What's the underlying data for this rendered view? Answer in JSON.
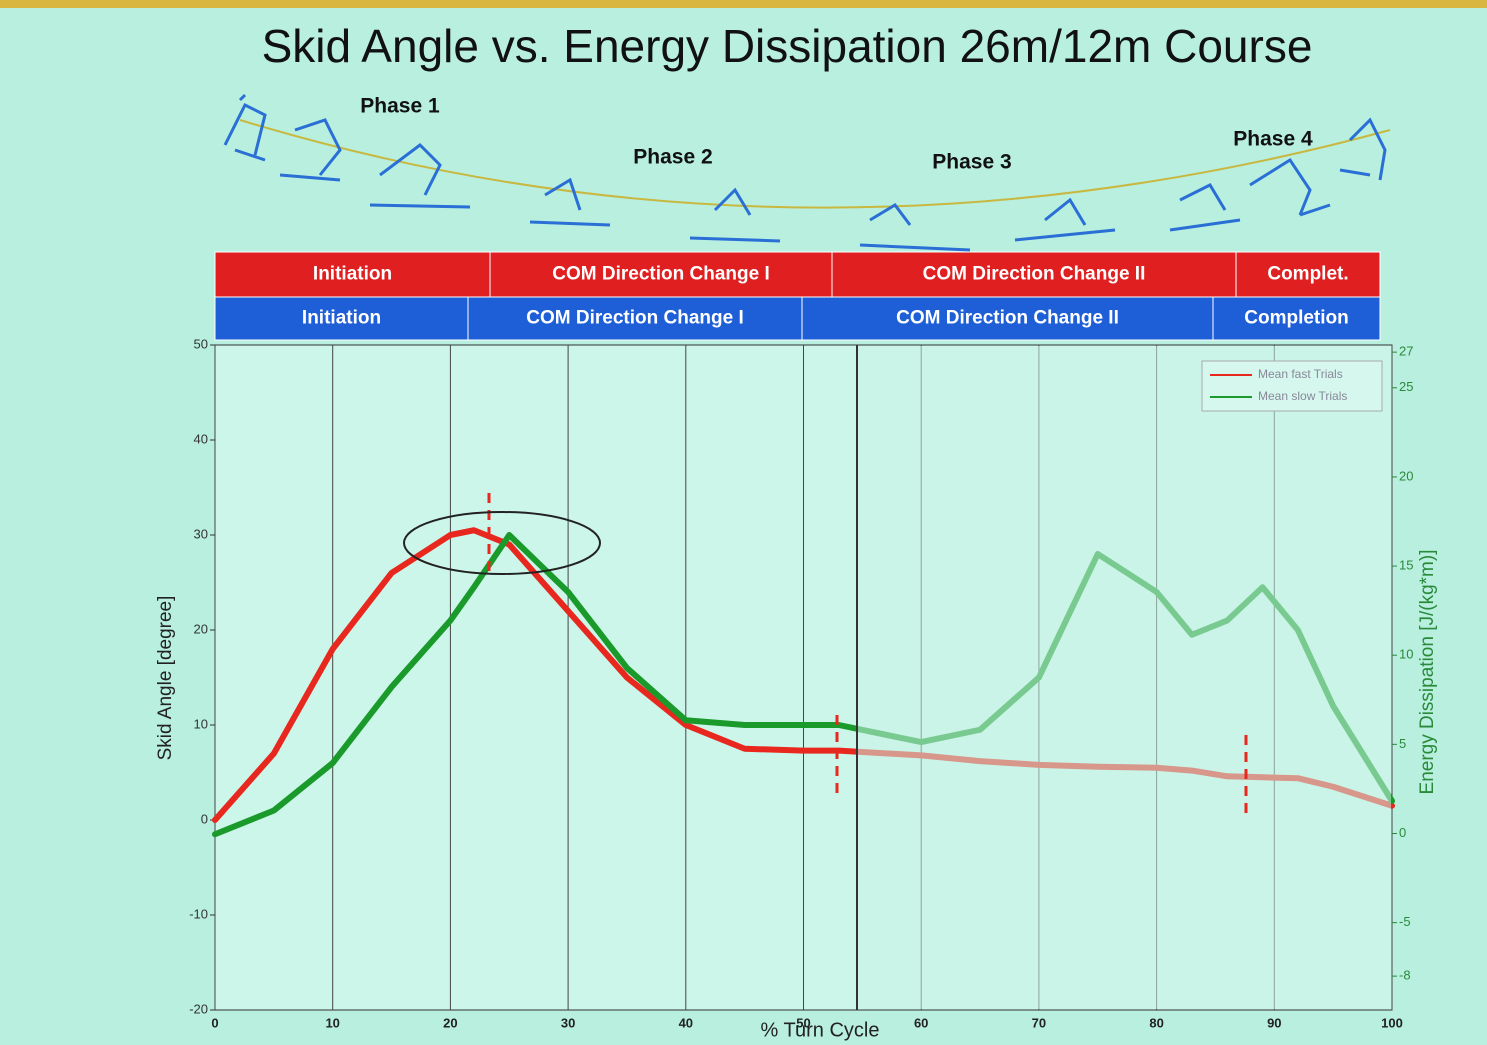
{
  "chart_data": {
    "type": "line",
    "title": "Skid Angle vs. Energy Dissipation 26m/12m Course",
    "phase_labels": [
      "Phase 1",
      "Phase 2",
      "Phase 3",
      "Phase 4"
    ],
    "fast_bands": [
      "Initiation",
      "COM Direction Change I",
      "COM Direction Change II",
      "Complet."
    ],
    "slow_bands": [
      "Initiation",
      "COM Direction Change I",
      "COM Direction Change II",
      "Completion"
    ],
    "xlabel": "% Turn Cycle",
    "ylabel": "Skid Angle [degree]",
    "y2label": "Energy Dissipation [J/(kg*m)]",
    "x": [
      0,
      5,
      10,
      15,
      20,
      22,
      25,
      30,
      35,
      40,
      45,
      50,
      53,
      60,
      65,
      70,
      75,
      80,
      83,
      86,
      89,
      92,
      95,
      100
    ],
    "series": [
      {
        "name": "Mean fast Trials",
        "color": "#e8281e",
        "values": [
          0,
          7,
          18,
          26,
          30,
          30.5,
          29,
          22,
          15,
          10,
          7.5,
          7.3,
          7.3,
          6.8,
          6.2,
          5.8,
          5.6,
          5.5,
          5.2,
          4.6,
          4.5,
          4.4,
          3.5,
          1.5
        ]
      },
      {
        "name": "Mean slow Trials",
        "color": "#1a9a2a",
        "values": [
          -1.5,
          1,
          6,
          14,
          21,
          24.5,
          30,
          24,
          16,
          10.5,
          10,
          10,
          10,
          8.2,
          9.5,
          15,
          28,
          24,
          19.5,
          21,
          24.5,
          20,
          12,
          2
        ]
      }
    ],
    "xlim": [
      0,
      100
    ],
    "xticks": [
      0,
      10,
      20,
      30,
      40,
      50,
      60,
      70,
      80,
      90,
      100
    ],
    "ylim": [
      -20,
      50
    ],
    "yticks": [
      -20,
      -10,
      0,
      10,
      20,
      30,
      40,
      50
    ],
    "y2lim": [
      -9.9,
      27.4
    ],
    "y2ticks": [
      -8,
      -5,
      0,
      5,
      10,
      15,
      20,
      25,
      27
    ],
    "grid": true,
    "legend": "upper right"
  }
}
